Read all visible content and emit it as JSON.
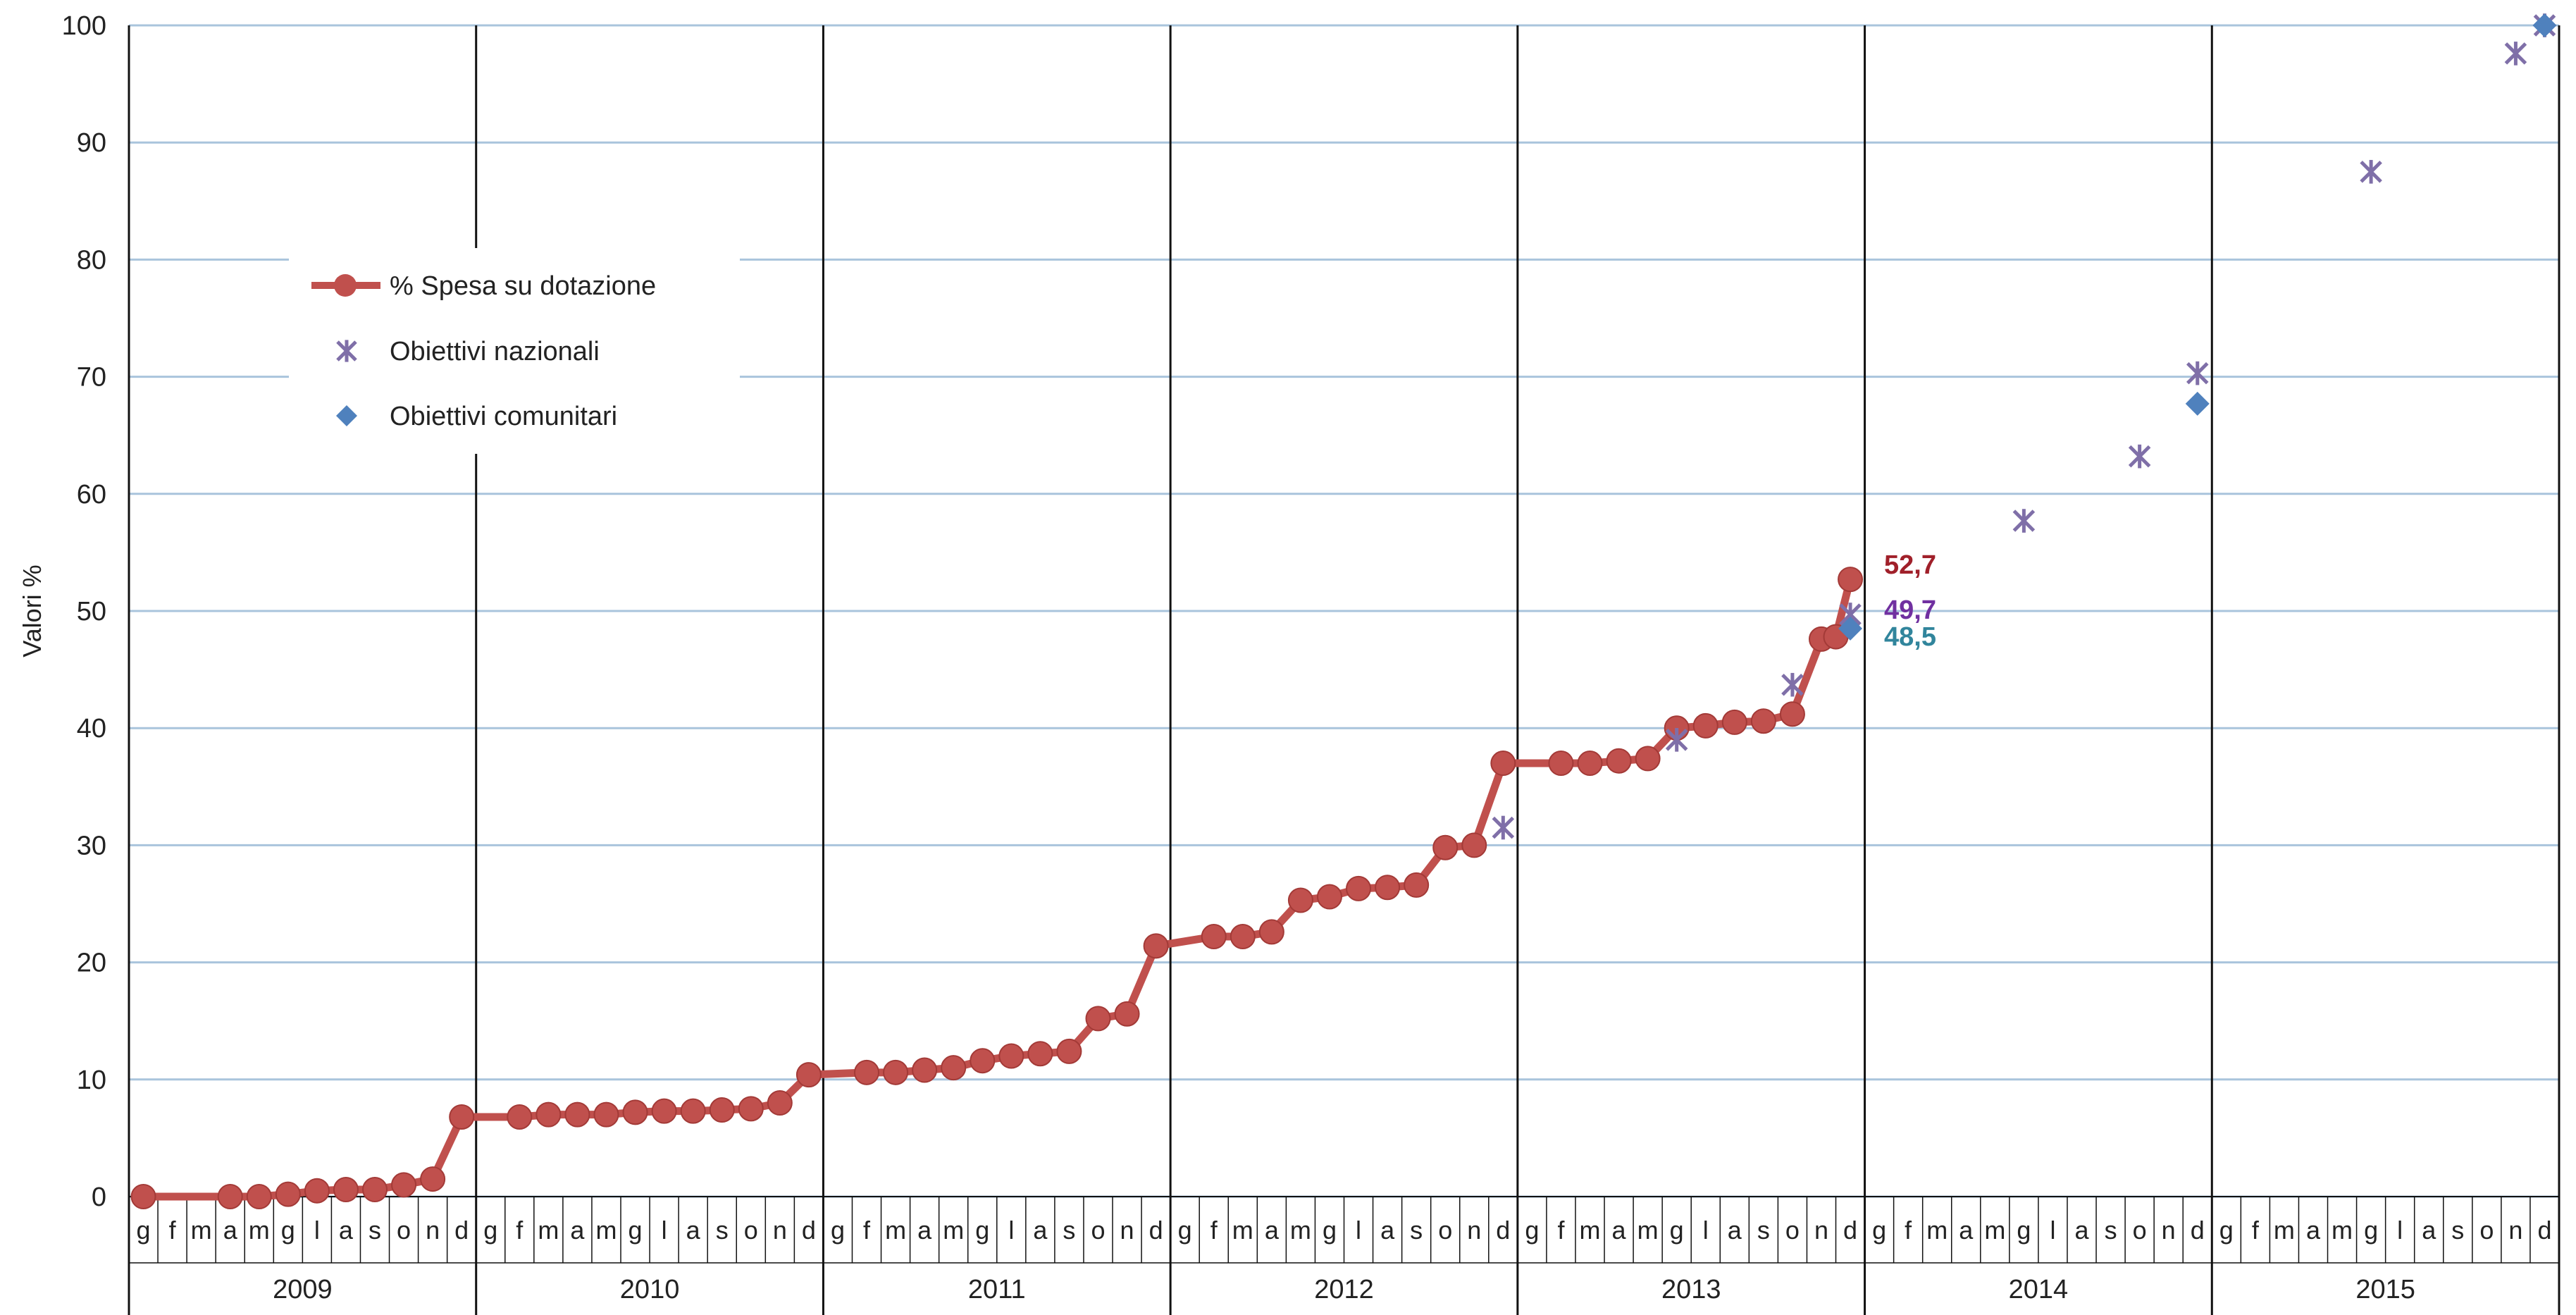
{
  "chart_data": {
    "type": "line",
    "ylabel": "Valori %",
    "xlabel": "",
    "ylim": [
      0,
      100
    ],
    "yticks": [
      0,
      10,
      20,
      30,
      40,
      50,
      60,
      70,
      80,
      90,
      100
    ],
    "grid": true,
    "legend_position": "top-left",
    "years": [
      "2009",
      "2010",
      "2011",
      "2012",
      "2013",
      "2014",
      "2015"
    ],
    "month_labels": [
      "g",
      "f",
      "m",
      "a",
      "m",
      "g",
      "l",
      "a",
      "s",
      "o",
      "n",
      "d"
    ],
    "colors": {
      "spesa": "#C0504D",
      "spesa_marker": "#C0504D",
      "nazionali": "#7F6FA8",
      "comunitari": "#4F81BD",
      "grid": "#A9C4DC",
      "year_divider": "#111111",
      "anno_spesa": "#A0202A",
      "anno_nazionali": "#7030A0",
      "anno_comunitari": "#31859C"
    },
    "series": [
      {
        "name": "% Spesa su dotazione",
        "marker": "circle",
        "points": [
          [
            "2009-g",
            0
          ],
          [
            "2009-a",
            0
          ],
          [
            "2009-m2",
            0
          ],
          [
            "2009-g2",
            0.2
          ],
          [
            "2009-l",
            0.5
          ],
          [
            "2009-a2",
            0.6
          ],
          [
            "2009-s",
            0.6
          ],
          [
            "2009-o",
            1.0
          ],
          [
            "2009-n",
            1.5
          ],
          [
            "2009-d",
            6.8
          ],
          [
            "2010-f",
            6.8
          ],
          [
            "2010-m",
            7.0
          ],
          [
            "2010-a",
            7.0
          ],
          [
            "2010-m2",
            7.0
          ],
          [
            "2010-g2",
            7.2
          ],
          [
            "2010-l",
            7.3
          ],
          [
            "2010-a2",
            7.3
          ],
          [
            "2010-s",
            7.4
          ],
          [
            "2010-o",
            7.5
          ],
          [
            "2010-n",
            8.0
          ],
          [
            "2010-d",
            10.4
          ],
          [
            "2011-f",
            10.6
          ],
          [
            "2011-m",
            10.6
          ],
          [
            "2011-a",
            10.8
          ],
          [
            "2011-m2",
            11.0
          ],
          [
            "2011-g2",
            11.6
          ],
          [
            "2011-l",
            12.0
          ],
          [
            "2011-a2",
            12.2
          ],
          [
            "2011-s",
            12.4
          ],
          [
            "2011-o",
            15.2
          ],
          [
            "2011-n",
            15.6
          ],
          [
            "2011-d",
            21.4
          ],
          [
            "2012-f",
            22.2
          ],
          [
            "2012-m",
            22.2
          ],
          [
            "2012-a",
            22.6
          ],
          [
            "2012-m2",
            25.3
          ],
          [
            "2012-g2",
            25.6
          ],
          [
            "2012-l",
            26.3
          ],
          [
            "2012-a2",
            26.4
          ],
          [
            "2012-s",
            26.6
          ],
          [
            "2012-o",
            29.8
          ],
          [
            "2012-n",
            30.0
          ],
          [
            "2012-d",
            37.0
          ],
          [
            "2013-f",
            37.0
          ],
          [
            "2013-m",
            37.0
          ],
          [
            "2013-a",
            37.2
          ],
          [
            "2013-m2",
            37.4
          ],
          [
            "2013-g2",
            40.0
          ],
          [
            "2013-l",
            40.2
          ],
          [
            "2013-a2",
            40.5
          ],
          [
            "2013-s",
            40.6
          ],
          [
            "2013-o",
            41.2
          ],
          [
            "2013-n",
            47.6
          ],
          [
            "2013-n2",
            47.8
          ],
          [
            "2013-d",
            52.7
          ]
        ]
      },
      {
        "name": "Obiettivi nazionali",
        "marker": "star",
        "points": [
          [
            "2012-d",
            31.5
          ],
          [
            "2013-g2",
            39.0
          ],
          [
            "2013-o",
            43.7
          ],
          [
            "2013-d",
            49.7
          ],
          [
            "2014-g2",
            57.7
          ],
          [
            "2014-o",
            63.2
          ],
          [
            "2014-d",
            70.3
          ],
          [
            "2015-g2",
            87.5
          ],
          [
            "2015-n",
            97.6
          ],
          [
            "2015-d",
            100
          ]
        ]
      },
      {
        "name": "Obiettivi comunitari",
        "marker": "diamond",
        "points": [
          [
            "2013-d",
            48.5
          ],
          [
            "2014-d",
            67.7
          ],
          [
            "2015-d",
            100
          ]
        ]
      }
    ],
    "annotations": [
      {
        "text": "52,7",
        "series": "spesa",
        "x": "2013-d",
        "y": 52.7
      },
      {
        "text": "49,7",
        "series": "nazionali",
        "x": "2013-d",
        "y": 49.7
      },
      {
        "text": "48,5",
        "series": "comunitari",
        "x": "2013-d",
        "y": 48.5
      }
    ]
  }
}
